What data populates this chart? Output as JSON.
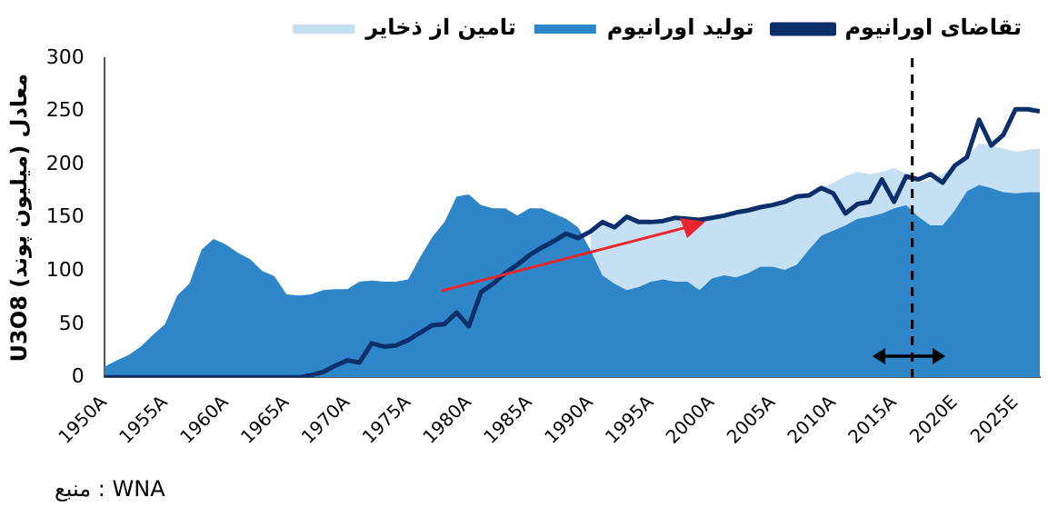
{
  "chart_data": {
    "type": "area",
    "stacked": true,
    "ylabel": "U3O8 معادل (میلیون پوند)",
    "annotations": [
      "منبع : WNA"
    ],
    "x": [
      1950,
      1951,
      1952,
      1953,
      1954,
      1955,
      1956,
      1957,
      1958,
      1959,
      1960,
      1961,
      1962,
      1963,
      1964,
      1965,
      1966,
      1967,
      1968,
      1969,
      1970,
      1971,
      1972,
      1973,
      1974,
      1975,
      1976,
      1977,
      1978,
      1979,
      1980,
      1981,
      1982,
      1983,
      1984,
      1985,
      1986,
      1987,
      1988,
      1989,
      1990,
      1991,
      1992,
      1993,
      1994,
      1995,
      1996,
      1997,
      1998,
      1999,
      2000,
      2001,
      2002,
      2003,
      2004,
      2005,
      2006,
      2007,
      2008,
      2009,
      2010,
      2011,
      2012,
      2013,
      2014,
      2015,
      2016,
      2017,
      2018,
      2019,
      2020,
      2021,
      2022,
      2023,
      2024,
      2025,
      2026,
      2027
    ],
    "xlim": [
      1950,
      2027
    ],
    "xticks": [
      {
        "value": 1950,
        "label": "1950A"
      },
      {
        "value": 1955,
        "label": "1955A"
      },
      {
        "value": 1960,
        "label": "1960A"
      },
      {
        "value": 1965,
        "label": "1965A"
      },
      {
        "value": 1970,
        "label": "1970A"
      },
      {
        "value": 1975,
        "label": "1975A"
      },
      {
        "value": 1980,
        "label": "1980A"
      },
      {
        "value": 1985,
        "label": "1985A"
      },
      {
        "value": 1990,
        "label": "1990A"
      },
      {
        "value": 1995,
        "label": "1995A"
      },
      {
        "value": 2000,
        "label": "2000A"
      },
      {
        "value": 2005,
        "label": "2005A"
      },
      {
        "value": 2010,
        "label": "2010A"
      },
      {
        "value": 2015,
        "label": "2015A"
      },
      {
        "value": 2020,
        "label": "2020E"
      },
      {
        "value": 2025,
        "label": "2025E"
      }
    ],
    "ylim": [
      0,
      300
    ],
    "yticks": [
      0,
      50,
      100,
      150,
      200,
      250,
      300
    ],
    "grid": false,
    "legend": "top",
    "ref_lines": [
      {
        "axis": "x",
        "value": 2016.5,
        "color": "#000000",
        "line_style": "dashed"
      }
    ],
    "series": [
      {
        "name": "تولید اورانیوم",
        "color": "#2e86c8",
        "values": [
          10,
          16,
          21,
          29,
          40,
          50,
          77,
          88,
          120,
          130,
          125,
          117,
          111,
          100,
          95,
          78,
          77,
          78,
          82,
          83,
          83,
          90,
          91,
          90,
          90,
          92,
          113,
          132,
          146,
          170,
          172,
          162,
          159,
          159,
          152,
          159,
          159,
          154,
          149,
          141,
          120,
          96,
          88,
          82,
          85,
          90,
          92,
          90,
          90,
          82,
          93,
          96,
          94,
          98,
          104,
          104,
          101,
          106,
          120,
          133,
          138,
          143,
          149,
          151,
          154,
          159,
          162,
          151,
          143,
          143,
          157,
          175,
          181,
          178,
          174,
          173,
          174,
          174
        ]
      },
      {
        "name": "تامین از ذخایر",
        "color": "#c5e0f3",
        "values": [
          null,
          null,
          null,
          null,
          null,
          null,
          null,
          null,
          null,
          null,
          null,
          null,
          null,
          null,
          null,
          null,
          null,
          null,
          null,
          null,
          null,
          null,
          null,
          null,
          null,
          null,
          null,
          null,
          null,
          null,
          null,
          null,
          null,
          null,
          null,
          null,
          null,
          null,
          null,
          null,
          17,
          50,
          53,
          69,
          61,
          56,
          55,
          60,
          59,
          66,
          57,
          56,
          61,
          59,
          56,
          58,
          64,
          64,
          51,
          45,
          45,
          46,
          44,
          40,
          39,
          38,
          29,
          32,
          43,
          48,
          42,
          32,
          39,
          40,
          41,
          39,
          40,
          41
        ]
      },
      {
        "name": "تقاضای اورانیوم",
        "type": "line",
        "color": "#0b2f6b",
        "values": [
          0,
          0,
          0,
          0,
          0,
          0,
          0,
          0,
          0,
          0,
          0,
          0,
          0,
          0,
          0,
          0,
          0,
          2,
          5,
          11,
          16,
          14,
          32,
          29,
          30,
          35,
          42,
          49,
          50,
          61,
          48,
          80,
          88,
          98,
          106,
          115,
          122,
          128,
          135,
          131,
          137,
          146,
          141,
          151,
          146,
          146,
          147,
          150,
          149,
          148,
          150,
          152,
          155,
          157,
          160,
          162,
          165,
          170,
          171,
          178,
          173,
          154,
          163,
          165,
          186,
          165,
          189,
          186,
          191,
          183,
          199,
          207,
          242,
          218,
          228,
          252,
          252,
          250
        ]
      }
    ]
  }
}
